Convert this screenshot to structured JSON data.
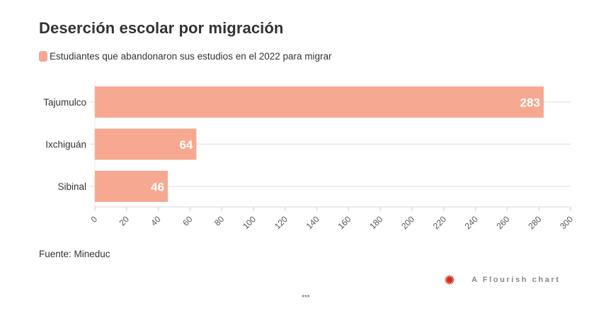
{
  "title": "Deserción escolar por migración",
  "legend": {
    "label": "Estudiantes que abandonaron sus estudios en el 2022 para migrar",
    "color": "#f7a891"
  },
  "source": "Fuente: Mineduc",
  "footer": {
    "brand": "A Flourish chart",
    "brand_icon": "flourish-logo-icon",
    "brand_color": "#d42b1e",
    "separator": "***"
  },
  "chart_data": {
    "type": "bar",
    "orientation": "horizontal",
    "title": "Deserción escolar por migración",
    "categories": [
      "Tajumulco",
      "Ixchiguán",
      "Sibinal"
    ],
    "series": [
      {
        "name": "Estudiantes que abandonaron sus estudios en el 2022 para migrar",
        "values": [
          283,
          64,
          46
        ],
        "color": "#f7a891"
      }
    ],
    "data_labels": [
      "283",
      "64",
      "46"
    ],
    "xlabel": "",
    "ylabel": "",
    "xlim": [
      0,
      300
    ],
    "x_ticks": [
      "0",
      "20",
      "40",
      "60",
      "80",
      "100",
      "120",
      "140",
      "160",
      "180",
      "200",
      "220",
      "240",
      "260",
      "280",
      "300"
    ],
    "grid": true,
    "legend_position": "top-left"
  }
}
